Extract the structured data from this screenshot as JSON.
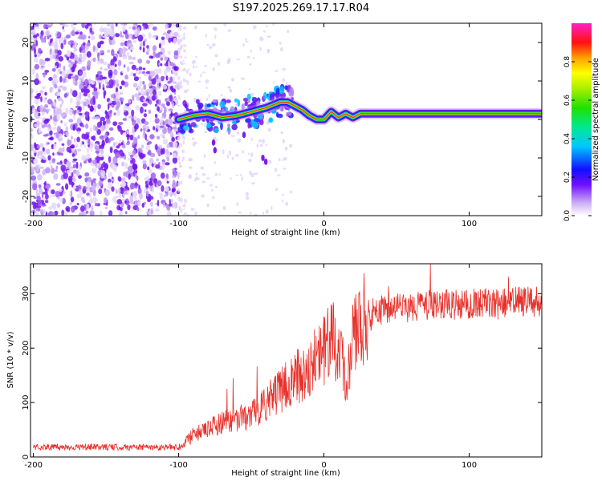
{
  "title": "S197.2025.269.17.17.R04",
  "colors": {
    "snr_line": "#e8302a",
    "frame": "#000000",
    "background": "#ffffff",
    "speckle_purple": "#7a1cf0",
    "speckle_light": "#c8a8f5"
  },
  "chart_data": [
    {
      "type": "heatmap",
      "name": "spectrogram",
      "xlabel": "Height of straight line (km)",
      "ylabel": "Frequency (Hz)",
      "xlim": [
        -202,
        150
      ],
      "ylim": [
        -25,
        25
      ],
      "xticks": [
        -200,
        -100,
        0,
        100
      ],
      "xtick_labels": [
        "-200",
        "-100",
        "0",
        "100"
      ],
      "yticks": [
        -20,
        -10,
        0,
        10,
        20
      ],
      "ytick_labels": [
        "-20",
        "-10",
        "0",
        "10",
        "20"
      ],
      "noise_region_x": [
        -200,
        -100
      ],
      "ridge": {
        "x": [
          -100,
          -90,
          -80,
          -70,
          -60,
          -50,
          -40,
          -30,
          -25,
          -20,
          -15,
          -10,
          -5,
          0,
          5,
          10,
          15,
          20,
          25,
          40,
          60,
          80,
          100,
          120,
          150
        ],
        "y": [
          0,
          1,
          1.5,
          0.5,
          1,
          2,
          3,
          4.5,
          4.5,
          3.5,
          2.5,
          1,
          0,
          0,
          2,
          0.5,
          1.5,
          0.5,
          1.5,
          1.5,
          1.5,
          1.5,
          1.5,
          1.5,
          1.5
        ]
      },
      "colorbar": {
        "label": "Normalized spectral amplitude",
        "range": [
          0,
          1
        ],
        "ticks": [
          0.0,
          0.2,
          0.4,
          0.6,
          0.8
        ],
        "tick_labels": [
          "0.0",
          "0.2",
          "0.4",
          "0.6",
          "0.8"
        ]
      }
    },
    {
      "type": "line",
      "name": "snr",
      "xlabel": "Height of straight line (km)",
      "ylabel": "SNR (10 * v/v)",
      "xlim": [
        -202,
        150
      ],
      "ylim": [
        0,
        355
      ],
      "xticks": [
        -200,
        -100,
        0,
        100
      ],
      "xtick_labels": [
        "-200",
        "-100",
        "0",
        "100"
      ],
      "yticks": [
        0,
        100,
        200,
        300
      ],
      "ytick_labels": [
        "0",
        "100",
        "200",
        "300"
      ],
      "series": [
        {
          "name": "SNR",
          "x": [
            -200,
            -180,
            -160,
            -140,
            -120,
            -100,
            -95,
            -90,
            -80,
            -70,
            -60,
            -50,
            -40,
            -30,
            -20,
            -10,
            0,
            5,
            10,
            15,
            20,
            25,
            30,
            40,
            50,
            60,
            70,
            80,
            90,
            100,
            110,
            120,
            130,
            140,
            150
          ],
          "y": [
            18,
            18,
            18,
            18,
            18,
            18,
            30,
            40,
            50,
            65,
            70,
            75,
            100,
            120,
            145,
            165,
            195,
            210,
            215,
            135,
            220,
            240,
            260,
            270,
            275,
            275,
            280,
            280,
            280,
            280,
            285,
            280,
            285,
            285,
            285
          ]
        }
      ]
    }
  ]
}
